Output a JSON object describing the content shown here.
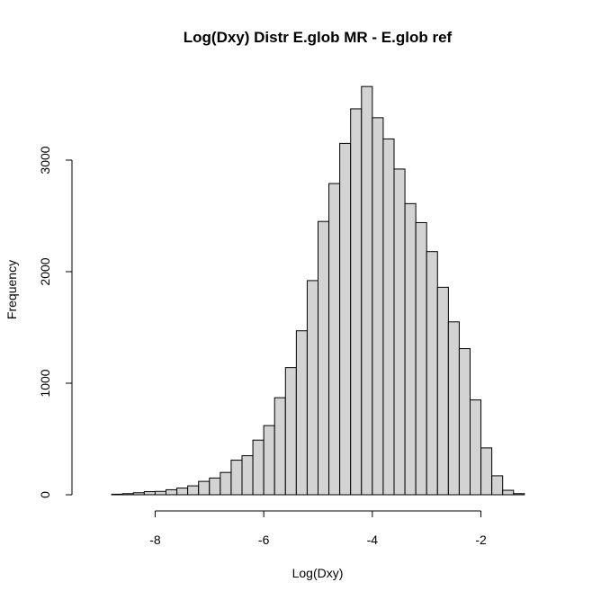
{
  "chart_data": {
    "type": "bar",
    "title": "Log(Dxy) Distr E.glob MR - E.glob ref",
    "xlabel": "Log(Dxy)",
    "ylabel": "Frequency",
    "xlim": [
      -9.2,
      -0.8
    ],
    "ylim": [
      0,
      3800
    ],
    "xticks": [
      -8,
      -6,
      -4,
      -2
    ],
    "xtick_labels": [
      "-8",
      "-6",
      "-4",
      "-2"
    ],
    "yticks": [
      0,
      1000,
      2000,
      3000
    ],
    "ytick_labels": [
      "0",
      "1000",
      "2000",
      "3000"
    ],
    "bin_width": 0.2,
    "bin_start": -8.8,
    "values": [
      5,
      10,
      18,
      28,
      30,
      45,
      60,
      80,
      120,
      150,
      200,
      310,
      350,
      490,
      620,
      870,
      1140,
      1470,
      1920,
      2450,
      2790,
      3150,
      3460,
      3660,
      3380,
      3190,
      2920,
      2610,
      2440,
      2180,
      1860,
      1550,
      1310,
      850,
      420,
      170,
      40,
      10
    ],
    "grid": false,
    "colors": {
      "bar_fill": "#d3d3d3",
      "bar_stroke": "#000000"
    }
  }
}
